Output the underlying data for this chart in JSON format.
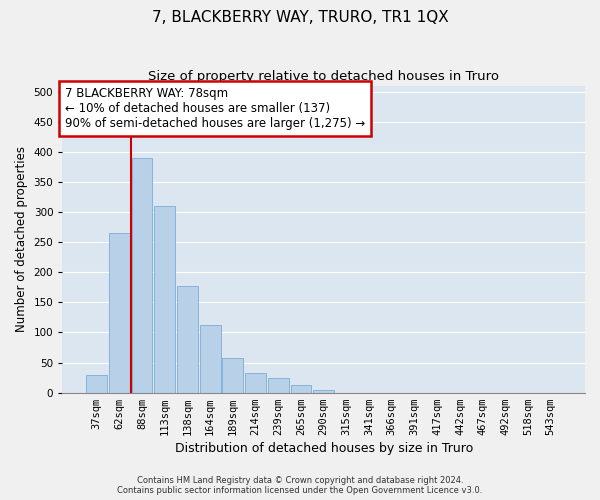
{
  "title": "7, BLACKBERRY WAY, TRURO, TR1 1QX",
  "subtitle": "Size of property relative to detached houses in Truro",
  "xlabel": "Distribution of detached houses by size in Truro",
  "ylabel": "Number of detached properties",
  "bar_labels": [
    "37sqm",
    "62sqm",
    "88sqm",
    "113sqm",
    "138sqm",
    "164sqm",
    "189sqm",
    "214sqm",
    "239sqm",
    "265sqm",
    "290sqm",
    "315sqm",
    "341sqm",
    "366sqm",
    "391sqm",
    "417sqm",
    "442sqm",
    "467sqm",
    "492sqm",
    "518sqm",
    "543sqm"
  ],
  "bar_values": [
    30,
    265,
    390,
    310,
    177,
    113,
    57,
    32,
    25,
    13,
    5,
    0,
    0,
    0,
    0,
    0,
    0,
    0,
    0,
    0,
    0
  ],
  "bar_color": "#b8d0e8",
  "bar_edgecolor": "#7aaed4",
  "background_color": "#dce6f0",
  "grid_color": "#ffffff",
  "red_line_x": 1.5,
  "annotation_line1": "7 BLACKBERRY WAY: 78sqm",
  "annotation_line2": "← 10% of detached houses are smaller (137)",
  "annotation_line3": "90% of semi-detached houses are larger (1,275) →",
  "ylim": [
    0,
    510
  ],
  "yticks": [
    0,
    50,
    100,
    150,
    200,
    250,
    300,
    350,
    400,
    450,
    500
  ],
  "footer_line1": "Contains HM Land Registry data © Crown copyright and database right 2024.",
  "footer_line2": "Contains public sector information licensed under the Open Government Licence v3.0.",
  "title_fontsize": 11,
  "subtitle_fontsize": 9.5,
  "xlabel_fontsize": 9,
  "ylabel_fontsize": 8.5,
  "tick_fontsize": 7.5,
  "annotation_fontsize": 8.5,
  "footer_fontsize": 6
}
